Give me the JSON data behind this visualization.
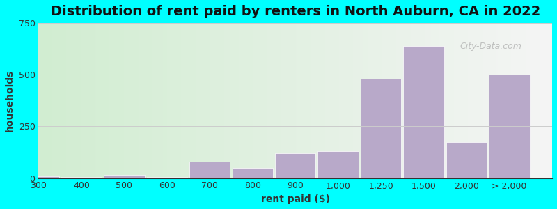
{
  "title": "Distribution of rent paid by renters in North Auburn, CA in 2022",
  "xlabel": "rent paid ($)",
  "ylabel": "households",
  "background_color": "#00FFFF",
  "plot_bg_gradient_left": "#d4edda",
  "plot_bg_gradient_right": "#f5f5f5",
  "bar_color": "#b8a9c9",
  "bar_edgecolor": "#ffffff",
  "ylim": [
    0,
    750
  ],
  "yticks": [
    0,
    250,
    500,
    750
  ],
  "bar_labels": [
    "300",
    "400",
    "500",
    "600",
    "700",
    "800",
    "900",
    "1,000",
    "1,250",
    "1,500",
    "2,000",
    "> 2,000"
  ],
  "bar_values": [
    10,
    5,
    15,
    5,
    80,
    50,
    120,
    130,
    480,
    640,
    175,
    500
  ],
  "bar_widths": [
    1,
    1,
    1,
    1,
    1,
    1,
    1,
    1,
    1,
    1,
    1,
    1
  ],
  "title_fontsize": 14,
  "axis_fontsize": 10,
  "tick_fontsize": 9,
  "watermark_text": "City-Data.com"
}
